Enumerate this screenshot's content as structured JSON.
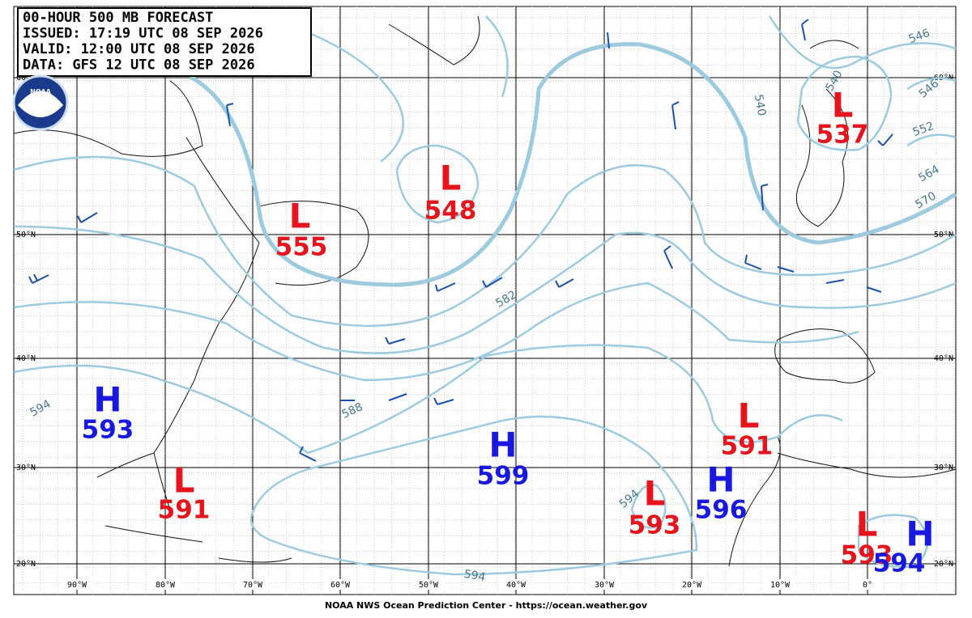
{
  "header": {
    "lines": [
      "00-HOUR 500 MB FORECAST",
      "ISSUED: 17:19 UTC 08 SEP 2026",
      "VALID:  12:00 UTC 08 SEP 2026",
      "DATA:  GFS 12 UTC 08 SEP 2026"
    ]
  },
  "logo": "NOAA",
  "lat_labels": [
    "60°N",
    "50°N",
    "40°N",
    "30°N",
    "20°N"
  ],
  "lon_labels": [
    "90°W",
    "80°W",
    "70°W",
    "60°W",
    "50°W",
    "40°W",
    "30°W",
    "20°W",
    "10°W",
    "0°"
  ],
  "centers": [
    {
      "letter": "L",
      "value": "555"
    },
    {
      "letter": "L",
      "value": "548"
    },
    {
      "letter": "L",
      "value": "537"
    },
    {
      "letter": "H",
      "value": "593"
    },
    {
      "letter": "L",
      "value": "591"
    },
    {
      "letter": "H",
      "value": "599"
    },
    {
      "letter": "L",
      "value": "591"
    },
    {
      "letter": "L",
      "value": "593"
    },
    {
      "letter": "H",
      "value": "596"
    },
    {
      "letter": "L",
      "value": "593"
    },
    {
      "letter": "H",
      "value": "594"
    }
  ],
  "contour_labels": [
    "594",
    "588",
    "582",
    "594",
    "594",
    "540",
    "546",
    "552",
    "564",
    "570",
    "546",
    "540"
  ],
  "footer": "NOAA NWS Ocean Prediction Center - https://ocean.weather.gov"
}
